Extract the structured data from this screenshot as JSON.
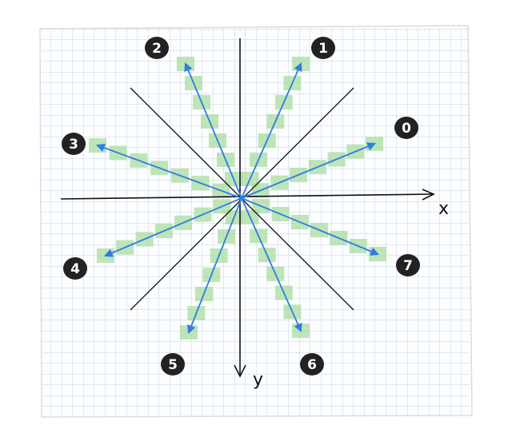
{
  "axes": {
    "x_label": "x",
    "y_label": "y"
  },
  "octants": [
    {
      "label": "0"
    },
    {
      "label": "1"
    },
    {
      "label": "2"
    },
    {
      "label": "3"
    },
    {
      "label": "4"
    },
    {
      "label": "5"
    },
    {
      "label": "6"
    },
    {
      "label": "7"
    }
  ],
  "colors": {
    "paper": "#fbfdff",
    "grid": "#c9d3df",
    "axis": "#111111",
    "divider": "#111111",
    "arrow": "#2f7de1",
    "pixel": "#a9dca0",
    "badge": "#222222",
    "badge_text": "#ffffff"
  }
}
